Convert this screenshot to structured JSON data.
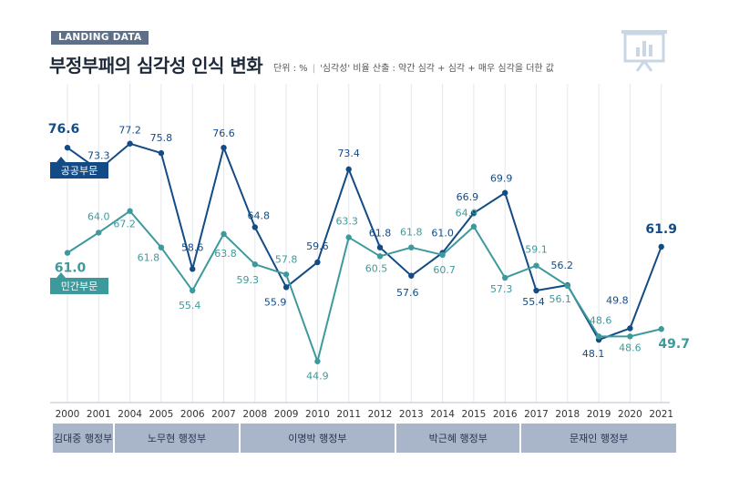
{
  "header": {
    "badge": "LANDING DATA",
    "title": "부정부패의 심각성 인식 변화",
    "unit": "단위 : %",
    "note": "'심각성' 비율 산출 : 약간 심각 + 심각 + 매우 심각을 더한 값"
  },
  "icon": "presentation-board-chart-icon",
  "chart_data": {
    "type": "line",
    "title": "부정부패의 심각성 인식 변화",
    "unit": "%",
    "categories": [
      "2000",
      "2001",
      "2004",
      "2005",
      "2006",
      "2007",
      "2008",
      "2009",
      "2010",
      "2011",
      "2012",
      "2013",
      "2014",
      "2015",
      "2016",
      "2017",
      "2018",
      "2019",
      "2020",
      "2021"
    ],
    "series": [
      {
        "name": "공공부문",
        "color": "#124b86",
        "values": [
          76.6,
          73.3,
          77.2,
          75.8,
          58.6,
          76.6,
          64.8,
          55.9,
          59.6,
          73.4,
          61.8,
          57.6,
          61.0,
          66.9,
          69.9,
          55.4,
          56.2,
          48.1,
          49.8,
          61.9
        ]
      },
      {
        "name": "민간부문",
        "color": "#3d9a9c",
        "values": [
          61.0,
          64.0,
          67.2,
          61.8,
          55.4,
          63.8,
          59.3,
          57.8,
          44.9,
          63.3,
          60.5,
          61.8,
          60.7,
          64.9,
          57.3,
          59.1,
          56.1,
          48.6,
          48.6,
          49.7
        ]
      }
    ],
    "ylim": [
      40,
      80
    ],
    "grid": "vertical",
    "legend": "left, labels beside line starts"
  },
  "administrations": [
    {
      "name": "김대중 행정부",
      "years": [
        "2000",
        "2001"
      ]
    },
    {
      "name": "노무현 행정부",
      "years": [
        "2004",
        "2007"
      ]
    },
    {
      "name": "이명박 행정부",
      "years": [
        "2008",
        "2012"
      ]
    },
    {
      "name": "박근혜 행정부",
      "years": [
        "2013",
        "2016"
      ]
    },
    {
      "name": "문재인 행정부",
      "years": [
        "2017",
        "2021"
      ]
    }
  ]
}
